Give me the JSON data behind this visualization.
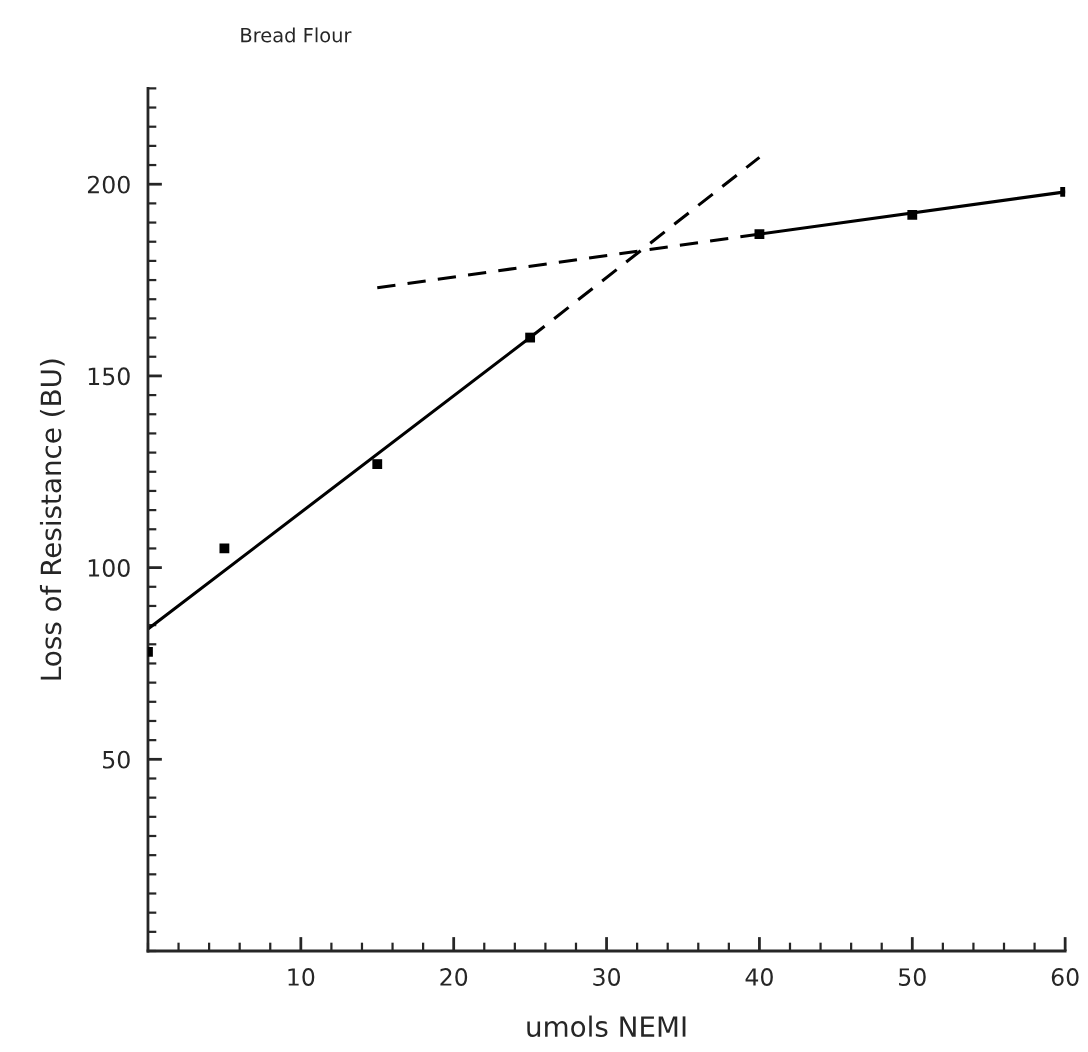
{
  "chart_data": {
    "type": "scatter",
    "title": "Bread Flour",
    "xlabel": "umols NEMI",
    "ylabel": "Loss of Resistance (BU)",
    "series": [
      {
        "color": "#000000",
        "marker": "square",
        "x": [
          0,
          5,
          15,
          25,
          40,
          50,
          60
        ],
        "values": [
          78,
          105,
          127,
          160,
          187,
          192,
          198
        ]
      },
      {
        "type": "line",
        "color": "#000000",
        "line_style": "solid",
        "marker": "none",
        "x": [
          0,
          25
        ],
        "values": [
          84,
          160
        ]
      },
      {
        "type": "line",
        "color": "#000000",
        "line_style": "dashed",
        "marker": "none",
        "x": [
          25,
          40
        ],
        "values": [
          160,
          207
        ]
      },
      {
        "type": "line",
        "color": "#000000",
        "line_style": "dashed",
        "marker": "none",
        "x": [
          15,
          40
        ],
        "values": [
          173,
          187
        ]
      },
      {
        "type": "line",
        "color": "#000000",
        "line_style": "solid",
        "marker": "none",
        "x": [
          40,
          60
        ],
        "values": [
          187,
          198
        ]
      }
    ],
    "xlim": [
      0,
      60
    ],
    "ylim": [
      0,
      225
    ],
    "grid": false,
    "legend": false,
    "xticks": [
      {
        "value": 0,
        "label": null
      },
      {
        "value": 2,
        "label": null
      },
      {
        "value": 4,
        "label": null
      },
      {
        "value": 6,
        "label": null
      },
      {
        "value": 8,
        "label": null
      },
      10,
      {
        "value": 12,
        "label": null
      },
      {
        "value": 14,
        "label": null
      },
      {
        "value": 16,
        "label": null
      },
      {
        "value": 18,
        "label": null
      },
      20,
      {
        "value": 22,
        "label": null
      },
      {
        "value": 24,
        "label": null
      },
      {
        "value": 26,
        "label": null
      },
      {
        "value": 28,
        "label": null
      },
      30,
      {
        "value": 32,
        "label": null
      },
      {
        "value": 34,
        "label": null
      },
      {
        "value": 36,
        "label": null
      },
      {
        "value": 38,
        "label": null
      },
      40,
      {
        "value": 42,
        "label": null
      },
      {
        "value": 44,
        "label": null
      },
      {
        "value": 46,
        "label": null
      },
      {
        "value": 48,
        "label": null
      },
      50,
      {
        "value": 52,
        "label": null
      },
      {
        "value": 54,
        "label": null
      },
      {
        "value": 56,
        "label": null
      },
      {
        "value": 58,
        "label": null
      },
      60
    ],
    "yticks": [
      {
        "value": 0,
        "label": null
      },
      {
        "value": 5,
        "label": null
      },
      {
        "value": 10,
        "label": null
      },
      {
        "value": 15,
        "label": null
      },
      {
        "value": 20,
        "label": null
      },
      {
        "value": 25,
        "label": null
      },
      {
        "value": 30,
        "label": null
      },
      {
        "value": 35,
        "label": null
      },
      {
        "value": 40,
        "label": null
      },
      {
        "value": 45,
        "label": null
      },
      50,
      {
        "value": 55,
        "label": null
      },
      {
        "value": 60,
        "label": null
      },
      {
        "value": 65,
        "label": null
      },
      {
        "value": 70,
        "label": null
      },
      {
        "value": 75,
        "label": null
      },
      {
        "value": 80,
        "label": null
      },
      {
        "value": 85,
        "label": null
      },
      {
        "value": 90,
        "label": null
      },
      {
        "value": 95,
        "label": null
      },
      100,
      {
        "value": 105,
        "label": null
      },
      {
        "value": 110,
        "label": null
      },
      {
        "value": 115,
        "label": null
      },
      {
        "value": 120,
        "label": null
      },
      {
        "value": 125,
        "label": null
      },
      {
        "value": 130,
        "label": null
      },
      {
        "value": 135,
        "label": null
      },
      {
        "value": 140,
        "label": null
      },
      {
        "value": 145,
        "label": null
      },
      150,
      {
        "value": 155,
        "label": null
      },
      {
        "value": 160,
        "label": null
      },
      {
        "value": 165,
        "label": null
      },
      {
        "value": 170,
        "label": null
      },
      {
        "value": 175,
        "label": null
      },
      {
        "value": 180,
        "label": null
      },
      {
        "value": 185,
        "label": null
      },
      {
        "value": 190,
        "label": null
      },
      {
        "value": 195,
        "label": null
      },
      200,
      {
        "value": 205,
        "label": null
      },
      {
        "value": 210,
        "label": null
      },
      {
        "value": 215,
        "label": null
      },
      {
        "value": 220,
        "label": null
      },
      {
        "value": 225,
        "label": null
      }
    ]
  }
}
